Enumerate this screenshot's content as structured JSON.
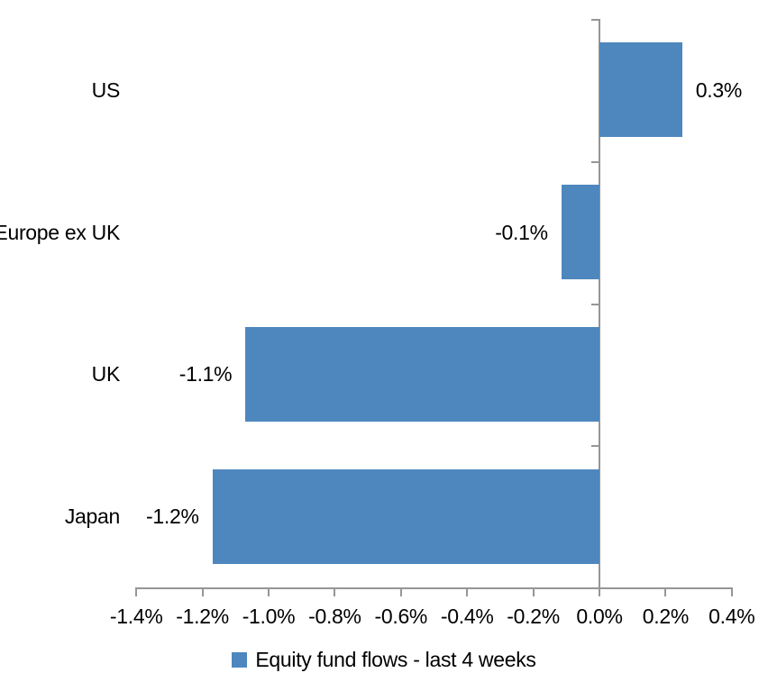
{
  "chart_data": {
    "type": "bar",
    "orientation": "horizontal",
    "categories": [
      "US",
      "Europe ex UK",
      "UK",
      "Japan"
    ],
    "series": [
      {
        "name": "Equity fund flows - last 4 weeks",
        "values": [
          0.3,
          -0.1,
          -1.1,
          -1.2
        ],
        "bar_lengths_pct": [
          0.25,
          -0.115,
          -1.07,
          -1.17
        ],
        "value_labels": [
          "0.3%",
          "-0.1%",
          "-1.1%",
          "-1.2%"
        ]
      }
    ],
    "xlabel": "",
    "ylabel": "",
    "xlim": [
      -1.4,
      0.4
    ],
    "x_tick_values": [
      -1.4,
      -1.2,
      -1.0,
      -0.8,
      -0.6,
      -0.4,
      -0.2,
      0.0,
      0.2,
      0.4
    ],
    "x_tick_labels": [
      "-1.4%",
      "-1.2%",
      "-1.0%",
      "-0.8%",
      "-0.6%",
      "-0.4%",
      "-0.2%",
      "0.0%",
      "0.2%",
      "0.4%"
    ],
    "grid": false,
    "legend_position": "bottom"
  },
  "legend": {
    "label": "Equity fund flows - last 4 weeks"
  },
  "colors": {
    "bar": "#4e87be",
    "axis": "#969696",
    "text": "#000000",
    "background": "#ffffff"
  }
}
